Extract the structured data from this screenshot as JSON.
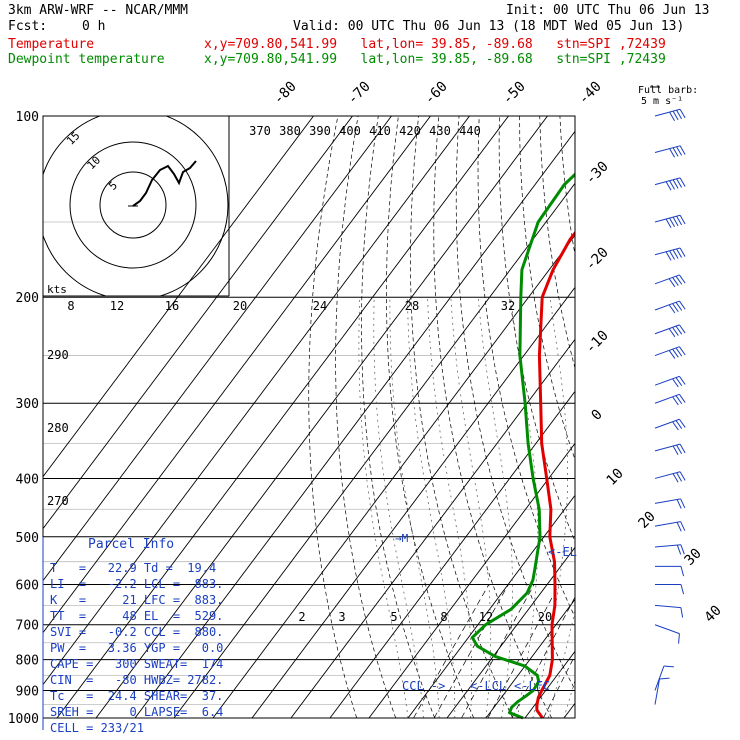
{
  "header": {
    "model": "3km ARW-WRF -- NCAR/MMM",
    "init": "Init: 00 UTC Thu 06 Jun 13",
    "fcst_label": "Fcst:",
    "fcst_value": "0 h",
    "valid": "Valid: 00 UTC Thu 06 Jun 13 (18 MDT Wed 05 Jun 13)",
    "temp_label": "Temperature",
    "temp_loc": "x,y=709.80,541.99   lat,lon= 39.85, -89.68   stn=SPI ,72439",
    "dew_label": "Dewpoint temperature",
    "dew_loc": "x,y=709.80,541.99   lat,lon= 39.85, -89.68   stn=SPI ,72439",
    "barb_legend": "Full barb:",
    "barb_legend_units": "5 m s⁻¹"
  },
  "colors": {
    "temperature": "#e00000",
    "dewpoint": "#008c00",
    "info": "#1a3fc2",
    "grid": "#000000"
  },
  "hodograph": {
    "units": "kts",
    "rings": [
      "5",
      "10",
      "15"
    ]
  },
  "parcel_info": {
    "title": "Parcel Info",
    "rows": [
      "T   =   22.9 Td =  19.4",
      "LI  =   -2.2 LCL =  883.",
      "K   =     21 LFC =  883.",
      "TT  =     48 EL  =  529.",
      "SVI =   -0.2 CCL =  880.",
      "PW  =   3.36 YGP =   0.0",
      "CAPE =   300 SWEAT=  174",
      "CIN  =   -80 HWBZ= 2782.",
      "Tc   =  24.4 SHEAR=  37.",
      "SREH =     0 LAPSE=  6.4",
      "CELL = 233/21"
    ]
  },
  "chart_data": {
    "type": "line",
    "title": "",
    "y_axis": "pressure",
    "pressure_levels": [
      "100",
      "200",
      "300",
      "400",
      "500",
      "600",
      "700",
      "800",
      "900",
      "1000"
    ],
    "isotherm_labels": [
      "-80",
      "-70",
      "-60",
      "-50",
      "-40",
      "-30",
      "-20",
      "-10",
      "0",
      "10",
      "20",
      "30",
      "40"
    ],
    "theta_labels": [
      "370",
      "380",
      "390",
      "400",
      "410",
      "420",
      "430",
      "440"
    ],
    "dry_adiabat_labels": [
      "290",
      "280",
      "270"
    ],
    "mixing_ratio_labels_top": [
      "8",
      "12",
      "16",
      "20",
      "24",
      "28",
      "32"
    ],
    "mixing_ratio_labels_bottom": [
      "2",
      "3",
      "5",
      "8",
      "12",
      "20"
    ],
    "level_markers": [
      "EL",
      "CCL",
      "LCL",
      "LFC"
    ],
    "series": [
      {
        "name": "Temperature",
        "points": [
          [
            1000,
            24.5
          ],
          [
            970,
            21.5
          ],
          [
            950,
            20.5
          ],
          [
            925,
            19.5
          ],
          [
            900,
            19.0
          ],
          [
            870,
            18.5
          ],
          [
            850,
            18.2
          ],
          [
            800,
            15.8
          ],
          [
            750,
            12.5
          ],
          [
            700,
            9.0
          ],
          [
            650,
            6.0
          ],
          [
            600,
            2.0
          ],
          [
            550,
            -2.5
          ],
          [
            500,
            -8.5
          ],
          [
            450,
            -13.5
          ],
          [
            400,
            -20.5
          ],
          [
            350,
            -28.5
          ],
          [
            300,
            -36.5
          ],
          [
            250,
            -46.0
          ],
          [
            200,
            -56.5
          ],
          [
            180,
            -59.0
          ],
          [
            160,
            -60.5
          ],
          [
            140,
            -60.0
          ],
          [
            120,
            -58.0
          ],
          [
            100,
            -58.0
          ]
        ]
      },
      {
        "name": "Dewpoint temperature",
        "points": [
          [
            1000,
            19.5
          ],
          [
            980,
            15.0
          ],
          [
            960,
            14.5
          ],
          [
            940,
            15.0
          ],
          [
            920,
            16.0
          ],
          [
            900,
            16.8
          ],
          [
            870,
            16.5
          ],
          [
            850,
            15.0
          ],
          [
            820,
            10.0
          ],
          [
            790,
            0.5
          ],
          [
            760,
            -6.0
          ],
          [
            735,
            -9.0
          ],
          [
            700,
            -8.0
          ],
          [
            660,
            -4.5
          ],
          [
            620,
            -3.5
          ],
          [
            590,
            -4.5
          ],
          [
            560,
            -6.5
          ],
          [
            500,
            -11.0
          ],
          [
            450,
            -16.5
          ],
          [
            400,
            -24.0
          ],
          [
            350,
            -32.0
          ],
          [
            300,
            -40.5
          ],
          [
            250,
            -51.0
          ],
          [
            200,
            -62.0
          ],
          [
            180,
            -67.0
          ],
          [
            150,
            -72.0
          ],
          [
            130,
            -72.5
          ],
          [
            115,
            -70.0
          ],
          [
            100,
            -70.0
          ]
        ]
      }
    ],
    "wind_barbs": [
      {
        "p": 100,
        "dir": 255,
        "spd_ms": 20
      },
      {
        "p": 115,
        "dir": 255,
        "spd_ms": 22
      },
      {
        "p": 130,
        "dir": 255,
        "spd_ms": 24
      },
      {
        "p": 150,
        "dir": 255,
        "spd_ms": 25
      },
      {
        "p": 170,
        "dir": 255,
        "spd_ms": 24
      },
      {
        "p": 190,
        "dir": 250,
        "spd_ms": 22
      },
      {
        "p": 210,
        "dir": 250,
        "spd_ms": 20
      },
      {
        "p": 230,
        "dir": 250,
        "spd_ms": 20
      },
      {
        "p": 250,
        "dir": 250,
        "spd_ms": 18
      },
      {
        "p": 280,
        "dir": 250,
        "spd_ms": 16
      },
      {
        "p": 300,
        "dir": 250,
        "spd_ms": 15
      },
      {
        "p": 330,
        "dir": 250,
        "spd_ms": 15
      },
      {
        "p": 360,
        "dir": 255,
        "spd_ms": 13
      },
      {
        "p": 400,
        "dir": 255,
        "spd_ms": 13
      },
      {
        "p": 440,
        "dir": 260,
        "spd_ms": 12
      },
      {
        "p": 480,
        "dir": 260,
        "spd_ms": 10
      },
      {
        "p": 520,
        "dir": 265,
        "spd_ms": 8
      },
      {
        "p": 560,
        "dir": 270,
        "spd_ms": 6
      },
      {
        "p": 600,
        "dir": 270,
        "spd_ms": 5
      },
      {
        "p": 650,
        "dir": 275,
        "spd_ms": 5
      },
      {
        "p": 700,
        "dir": 290,
        "spd_ms": 4
      },
      {
        "p": 900,
        "dir": 200,
        "spd_ms": 7
      },
      {
        "p": 950,
        "dir": 190,
        "spd_ms": 6
      }
    ]
  }
}
